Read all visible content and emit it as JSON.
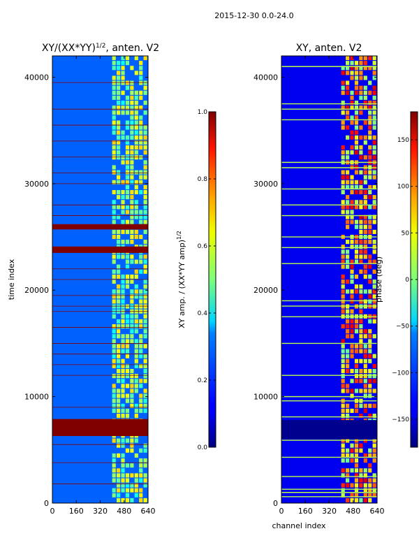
{
  "figure_title": "2015-12-30 0.0-24.0",
  "chart_data": [
    {
      "type": "heatmap",
      "title": "XY/(XX*YY)^{1/2}, anten. V2",
      "title_main": "XY/(XX*YY)",
      "title_exp": "1/2",
      "title_tail": ", anten. V2",
      "xlabel": "",
      "ylabel": "time index",
      "xlim": [
        0,
        640
      ],
      "ylim": [
        0,
        42000
      ],
      "xticks": [
        0,
        160,
        320,
        480,
        640
      ],
      "yticks": [
        0,
        10000,
        20000,
        30000,
        40000
      ],
      "colormap": "jet",
      "colorbar": {
        "label": "XY amp. / (XX*YY amp)^{1/2}",
        "label_main": "XY amp. / (XX*YY amp)",
        "label_exp": "1/2",
        "range": [
          0.0,
          1.0
        ],
        "ticks": [
          "0.0",
          "0.2",
          "0.4",
          "0.6",
          "0.8",
          "1.0"
        ],
        "tick_values": [
          0.0,
          0.2,
          0.4,
          0.6,
          0.8,
          1.0
        ]
      },
      "background_value": 0.22,
      "active_band": {
        "x_range": [
          400,
          640
        ],
        "value": 0.5
      },
      "saturated_bands": [
        {
          "y_range": [
            6300,
            7900
          ],
          "value": 1.0
        },
        {
          "y_range": [
            23500,
            24100
          ],
          "value": 1.0
        },
        {
          "y_range": [
            25700,
            26200
          ],
          "value": 1.0
        }
      ],
      "flag_lines_y": [
        1800,
        3800,
        5500,
        9000,
        12000,
        13000,
        14000,
        15000,
        16500,
        18000,
        18500,
        19500,
        21000,
        22000,
        27000,
        28000,
        30000,
        31000,
        32500,
        34000,
        35500,
        37000,
        39500
      ]
    },
    {
      "type": "heatmap",
      "title": "XY, anten. V2",
      "xlabel": "channel index",
      "ylabel": "",
      "xlim": [
        0,
        640
      ],
      "ylim": [
        0,
        42000
      ],
      "xticks": [
        0,
        160,
        320,
        480,
        640
      ],
      "yticks": [
        0,
        10000,
        20000,
        30000,
        40000
      ],
      "colormap": "jet",
      "colorbar": {
        "label": "phase (deg)",
        "range": [
          -180,
          180
        ],
        "ticks": [
          "−150",
          "−100",
          "−50",
          "0",
          "50",
          "100",
          "150"
        ],
        "tick_values": [
          -150,
          -100,
          -50,
          0,
          50,
          100,
          150
        ]
      },
      "background_value": -140,
      "active_band": {
        "x_range": [
          400,
          640
        ],
        "value": 40
      },
      "dark_bands": [
        {
          "y_range": [
            6000,
            7800
          ],
          "value": -175
        }
      ],
      "flag_lines_y": [
        600,
        1000,
        1300,
        2500,
        4300,
        5900,
        8100,
        9600,
        10000,
        12000,
        15000,
        17500,
        18500,
        19000,
        22500,
        24000,
        25000,
        27000,
        28000,
        29500,
        31500,
        32000,
        36000,
        37000,
        37500,
        41000
      ]
    }
  ]
}
